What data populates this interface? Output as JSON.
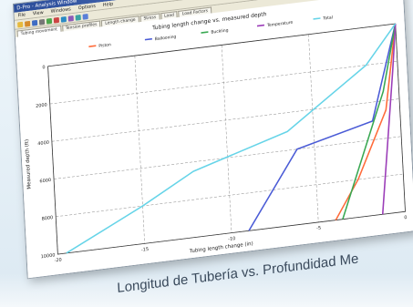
{
  "window": {
    "title": "D-Pro - Analysis Window",
    "menu": [
      "File",
      "View",
      "Windows",
      "Options",
      "Help"
    ],
    "tabs": [
      {
        "label": "Tubing movement",
        "active": true
      },
      {
        "label": "Tension profiles",
        "active": false
      },
      {
        "label": "Length change",
        "active": false
      },
      {
        "label": "Stress",
        "active": false
      },
      {
        "label": "Load",
        "active": false
      },
      {
        "label": "Load Factors",
        "active": false
      }
    ],
    "toolbar_icons": [
      "new-icon",
      "open-icon",
      "save-icon",
      "print-icon",
      "copy-icon",
      "paste-icon",
      "chart-icon",
      "table-icon",
      "zoom-icon",
      "help-icon"
    ]
  },
  "colors": {
    "piston": "#ff6b3a",
    "ballooning": "#4a5bd6",
    "buckling": "#39a852",
    "temperature": "#9b3db8",
    "total": "#66d4e8"
  },
  "caption": "Longitud de Tubería vs. Profundidad Me",
  "chart_data": {
    "type": "line",
    "title": "Tubing length change vs. measured depth",
    "xlabel": "Tubing length change (in)",
    "ylabel": "Measured depth (ft)",
    "xlim": [
      -20,
      0
    ],
    "ylim": [
      10000,
      0
    ],
    "x_ticks": [
      "-20",
      "-15",
      "-10",
      "-5",
      "0"
    ],
    "y_ticks": [
      "0",
      "2000",
      "4000",
      "6000",
      "8000",
      "10000"
    ],
    "grid": true,
    "legend_position": "top",
    "series": [
      {
        "name": "Piston",
        "color": "#ff6b3a",
        "points": [
          [
            0,
            0
          ],
          [
            -0.8,
            4500
          ],
          [
            -2.6,
            8000
          ],
          [
            -4,
            10000
          ]
        ]
      },
      {
        "name": "Ballooning",
        "color": "#4a5bd6",
        "points": [
          [
            0,
            0
          ],
          [
            -1.6,
            5000
          ],
          [
            -6,
            6000
          ],
          [
            -9,
            10000
          ]
        ]
      },
      {
        "name": "Buckling",
        "color": "#39a852",
        "points": [
          [
            0,
            0
          ],
          [
            -0.9,
            3500
          ],
          [
            -3.6,
            10000
          ]
        ]
      },
      {
        "name": "Temperature",
        "color": "#9b3db8",
        "points": [
          [
            0,
            0
          ],
          [
            -0.3,
            2500
          ],
          [
            -1.3,
            10000
          ]
        ]
      },
      {
        "name": "Total",
        "color": "#66d4e8",
        "points": [
          [
            0,
            0
          ],
          [
            -1.8,
            2000
          ],
          [
            -6.5,
            5000
          ],
          [
            -12,
            6500
          ],
          [
            -15,
            8000
          ],
          [
            -19.5,
            10000
          ]
        ]
      }
    ]
  }
}
